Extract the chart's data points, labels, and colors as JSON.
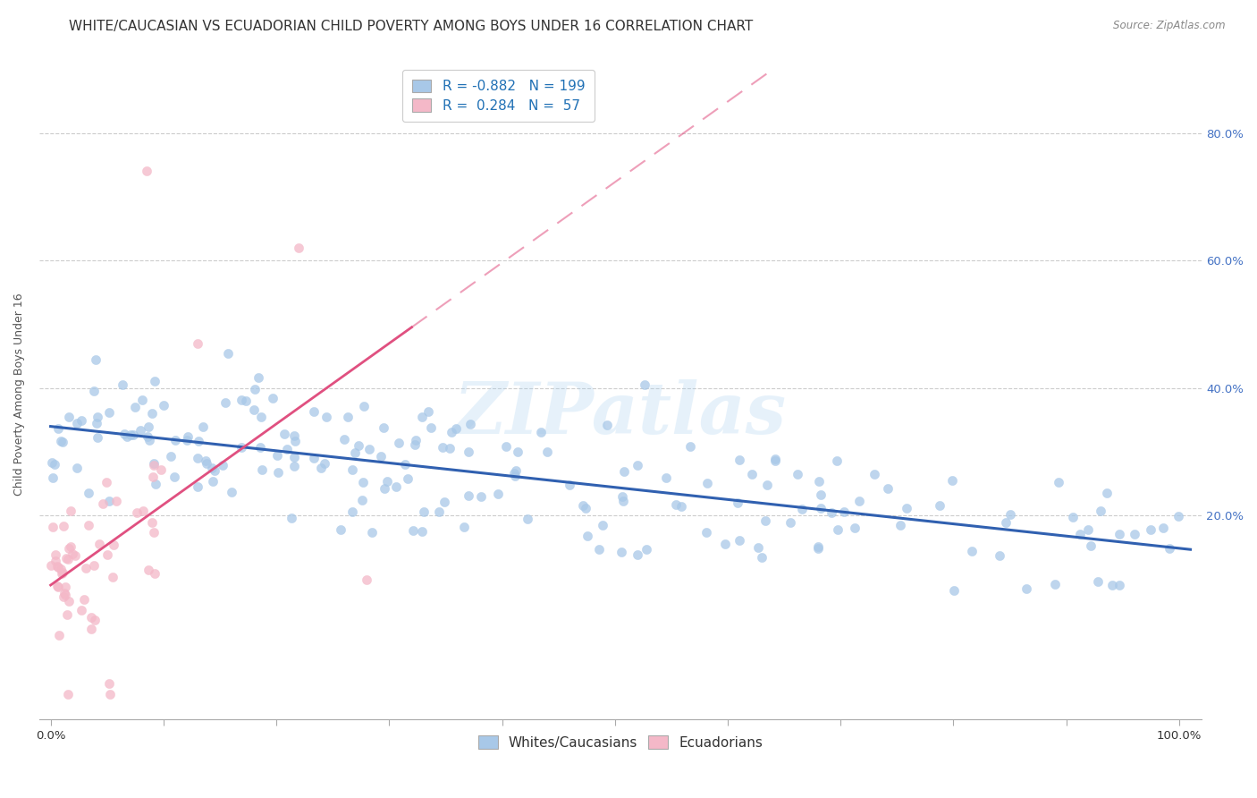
{
  "title": "WHITE/CAUCASIAN VS ECUADORIAN CHILD POVERTY AMONG BOYS UNDER 16 CORRELATION CHART",
  "source": "Source: ZipAtlas.com",
  "ylabel": "Child Poverty Among Boys Under 16",
  "legend_labels": [
    "Whites/Caucasians",
    "Ecuadorians"
  ],
  "blue_R": -0.882,
  "blue_N": 199,
  "pink_R": 0.284,
  "pink_N": 57,
  "blue_color": "#a8c8e8",
  "pink_color": "#f4b8c8",
  "blue_line_color": "#3060b0",
  "pink_line_color": "#e05080",
  "background_color": "#ffffff",
  "watermark": "ZIPatlas",
  "title_fontsize": 11,
  "axis_label_fontsize": 9,
  "tick_fontsize": 9.5,
  "legend_fontsize": 11,
  "ytick_positions": [
    0.2,
    0.4,
    0.6,
    0.8
  ],
  "ytick_labels": [
    "20.0%",
    "40.0%",
    "60.0%",
    "80.0%"
  ],
  "xtick_positions": [
    0.0,
    0.1,
    0.2,
    0.3,
    0.4,
    0.5,
    0.6,
    0.7,
    0.8,
    0.9,
    1.0
  ],
  "xlim": [
    -0.01,
    1.02
  ],
  "ylim": [
    -0.12,
    0.9
  ]
}
